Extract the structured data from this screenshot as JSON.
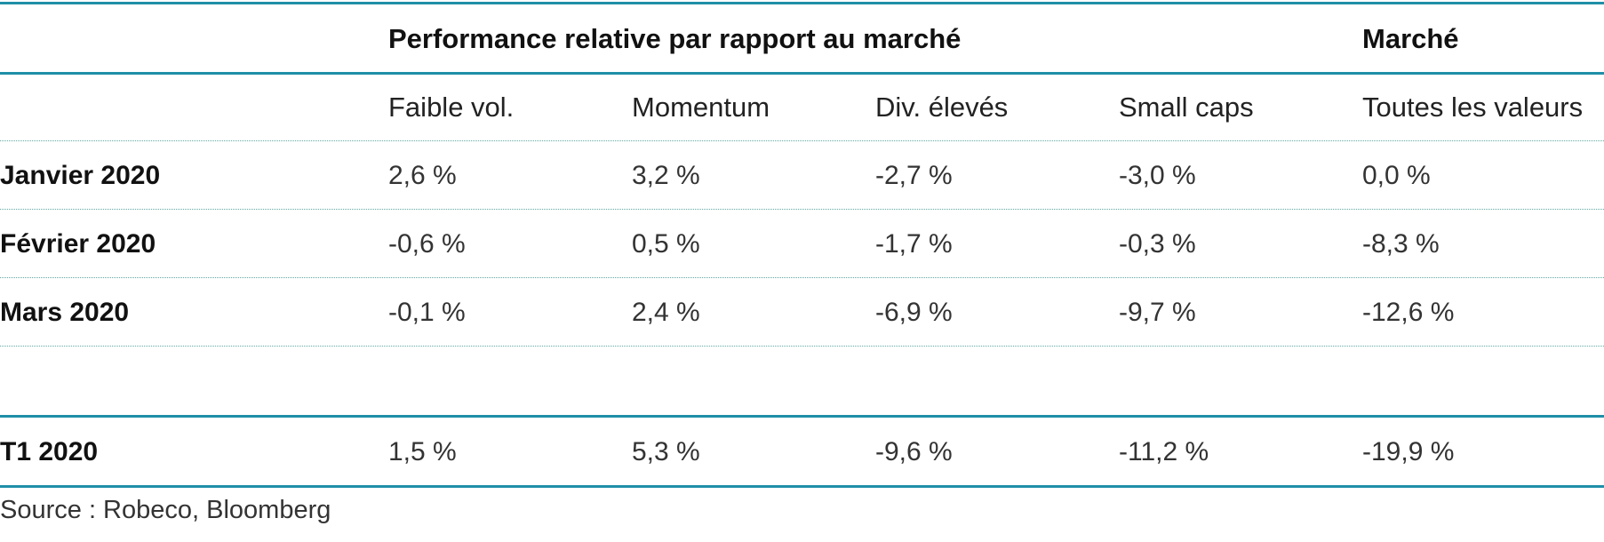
{
  "table": {
    "group_headers": {
      "relative": "Performance relative par rapport au marché",
      "market": "Marché"
    },
    "columns": [
      "Faible vol.",
      "Momentum",
      "Div. élevés",
      "Small caps",
      "Toutes les valeurs"
    ],
    "rows": [
      {
        "label": "Janvier 2020",
        "values": [
          "2,6 %",
          "3,2 %",
          "-2,7 %",
          "-3,0 %",
          "0,0 %"
        ]
      },
      {
        "label": "Février 2020",
        "values": [
          "-0,6 %",
          "0,5 %",
          "-1,7 %",
          "-0,3 %",
          "-8,3 %"
        ]
      },
      {
        "label": "Mars 2020",
        "values": [
          "-0,1 %",
          "2,4 %",
          "-6,9 %",
          "-9,7 %",
          "-12,6 %"
        ]
      }
    ],
    "total_row": {
      "label": "T1 2020",
      "values": [
        "1,5 %",
        "5,3 %",
        "-9,6 %",
        "-11,2 %",
        "-19,9 %"
      ]
    }
  },
  "source": "Source :  Robeco, Bloomberg",
  "colors": {
    "rule": "#1f8fa8",
    "dotted_rule": "#5fa9a3"
  }
}
